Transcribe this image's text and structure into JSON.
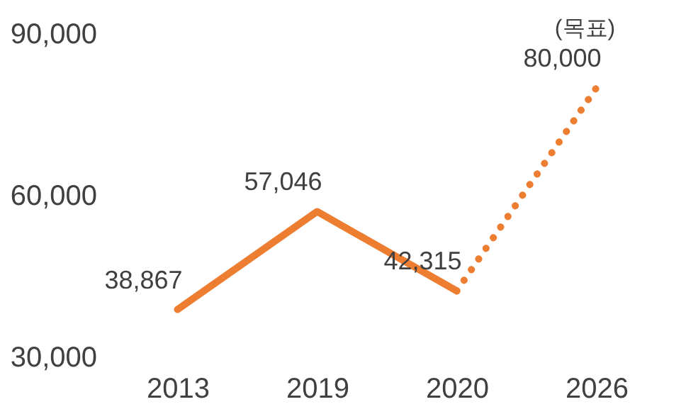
{
  "chart_data": {
    "type": "line",
    "categories": [
      "2013",
      "2019",
      "2020",
      "2026"
    ],
    "series": [
      {
        "color": "#ed7d31",
        "line_style": "solid",
        "values": [
          38867,
          57046,
          42315,
          null
        ],
        "value_labels": [
          "38,867",
          "57,046",
          "42,315",
          null
        ]
      },
      {
        "color": "#ed7d31",
        "line_style": "dotted",
        "values": [
          null,
          null,
          42315,
          80000
        ],
        "value_labels": [
          null,
          null,
          null,
          "80,000"
        ]
      }
    ],
    "annotations": [
      {
        "text": "(목표)",
        "x": "2026",
        "y": 80000
      }
    ],
    "ylim": [
      30000,
      90000
    ],
    "yticks": [
      {
        "value": 30000,
        "label": "30,000"
      },
      {
        "value": 60000,
        "label": "60,000"
      },
      {
        "value": 90000,
        "label": "90,000"
      }
    ],
    "grid": false,
    "marker": "none"
  }
}
